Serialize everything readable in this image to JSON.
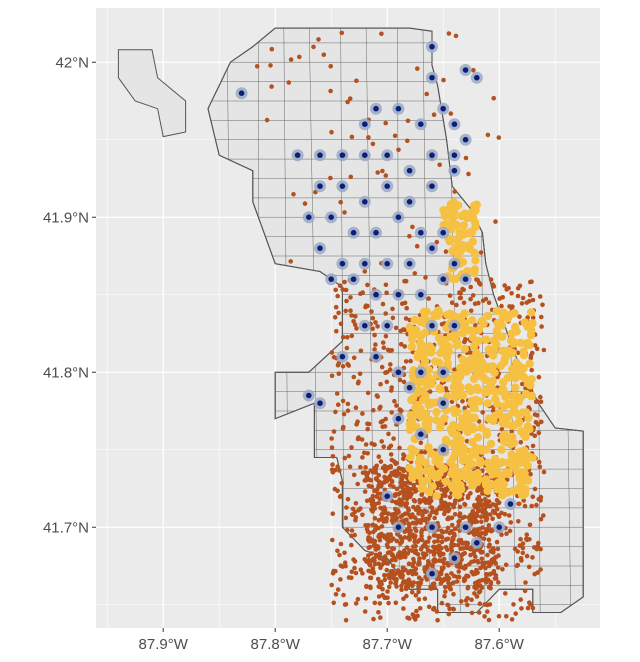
{
  "chart_data": {
    "type": "scatter",
    "title": "",
    "xlabel": "",
    "ylabel": "",
    "xlim": [
      -87.96,
      -87.51
    ],
    "ylim": [
      41.635,
      42.035
    ],
    "x_ticks": [
      {
        "value": -87.9,
        "label": "87.9°W"
      },
      {
        "value": -87.8,
        "label": "87.8°W"
      },
      {
        "value": -87.7,
        "label": "87.7°W"
      },
      {
        "value": -87.6,
        "label": "87.6°W"
      }
    ],
    "y_ticks": [
      {
        "value": 41.7,
        "label": "41.7°N"
      },
      {
        "value": 41.8,
        "label": "41.8°N"
      },
      {
        "value": 41.9,
        "label": "41.9°N"
      },
      {
        "value": 42.0,
        "label": "42°N"
      }
    ],
    "grid": true,
    "legend": "none",
    "colors": {
      "panel": "#ebebeb",
      "gridline": "#ffffff",
      "land": "#e5e5e5",
      "boundary": "#555555",
      "incident_points": "#b5501f",
      "yellow_markers": "#f6c142",
      "blue_markers": "#0b1f7a",
      "blue_marker_ring": "#9aa9c4"
    },
    "layers": [
      {
        "name": "orange",
        "marker": "point",
        "cluster_areas": [
          {
            "lon_range": [
              -87.75,
              -87.56
            ],
            "lat_range": [
              41.64,
              41.86
            ],
            "density": "high"
          },
          {
            "lon_range": [
              -87.72,
              -87.6
            ],
            "lat_range": [
              41.66,
              41.74
            ],
            "density": "high"
          },
          {
            "lon_range": [
              -87.82,
              -87.6
            ],
            "lat_range": [
              41.86,
              42.02
            ],
            "density": "low"
          }
        ]
      },
      {
        "name": "yellow",
        "marker": "filled-circle",
        "cluster_areas": [
          {
            "lon_range": [
              -87.68,
              -87.57
            ],
            "lat_range": [
              41.72,
              41.84
            ],
            "density": "high"
          },
          {
            "lon_range": [
              -87.65,
              -87.62
            ],
            "lat_range": [
              41.86,
              41.91
            ],
            "density": "medium"
          }
        ]
      },
      {
        "name": "blue",
        "marker": "ringed-dot",
        "points": [
          [
            -87.83,
            41.98
          ],
          [
            -87.78,
            41.94
          ],
          [
            -87.76,
            41.94
          ],
          [
            -87.74,
            41.94
          ],
          [
            -87.72,
            41.94
          ],
          [
            -87.7,
            41.94
          ],
          [
            -87.68,
            41.93
          ],
          [
            -87.66,
            41.94
          ],
          [
            -87.64,
            41.94
          ],
          [
            -87.63,
            41.95
          ],
          [
            -87.72,
            41.96
          ],
          [
            -87.71,
            41.97
          ],
          [
            -87.69,
            41.97
          ],
          [
            -87.67,
            41.96
          ],
          [
            -87.65,
            41.97
          ],
          [
            -87.64,
            41.96
          ],
          [
            -87.76,
            41.92
          ],
          [
            -87.74,
            41.92
          ],
          [
            -87.72,
            41.91
          ],
          [
            -87.7,
            41.92
          ],
          [
            -87.68,
            41.91
          ],
          [
            -87.66,
            41.92
          ],
          [
            -87.64,
            41.93
          ],
          [
            -87.77,
            41.9
          ],
          [
            -87.75,
            41.9
          ],
          [
            -87.73,
            41.89
          ],
          [
            -87.71,
            41.89
          ],
          [
            -87.69,
            41.9
          ],
          [
            -87.67,
            41.89
          ],
          [
            -87.65,
            41.89
          ],
          [
            -87.76,
            41.88
          ],
          [
            -87.74,
            41.87
          ],
          [
            -87.72,
            41.87
          ],
          [
            -87.7,
            41.87
          ],
          [
            -87.68,
            41.87
          ],
          [
            -87.66,
            41.88
          ],
          [
            -87.64,
            41.87
          ],
          [
            -87.75,
            41.86
          ],
          [
            -87.73,
            41.86
          ],
          [
            -87.71,
            41.85
          ],
          [
            -87.69,
            41.85
          ],
          [
            -87.67,
            41.85
          ],
          [
            -87.65,
            41.86
          ],
          [
            -87.63,
            41.86
          ],
          [
            -87.72,
            41.83
          ],
          [
            -87.7,
            41.83
          ],
          [
            -87.66,
            41.83
          ],
          [
            -87.64,
            41.83
          ],
          [
            -87.74,
            41.81
          ],
          [
            -87.71,
            41.81
          ],
          [
            -87.69,
            41.8
          ],
          [
            -87.67,
            41.8
          ],
          [
            -87.65,
            41.8
          ],
          [
            -87.68,
            41.79
          ],
          [
            -87.65,
            41.78
          ],
          [
            -87.77,
            41.785
          ],
          [
            -87.76,
            41.78
          ],
          [
            -87.69,
            41.77
          ],
          [
            -87.67,
            41.76
          ],
          [
            -87.65,
            41.75
          ],
          [
            -87.69,
            41.7
          ],
          [
            -87.66,
            41.7
          ],
          [
            -87.63,
            41.7
          ],
          [
            -87.6,
            41.7
          ],
          [
            -87.66,
            41.67
          ],
          [
            -87.64,
            41.68
          ],
          [
            -87.62,
            41.69
          ],
          [
            -87.7,
            41.72
          ],
          [
            -87.59,
            41.715
          ],
          [
            -87.63,
            41.995
          ],
          [
            -87.66,
            42.01
          ],
          [
            -87.66,
            41.99
          ],
          [
            -87.62,
            41.99
          ]
        ]
      }
    ]
  }
}
